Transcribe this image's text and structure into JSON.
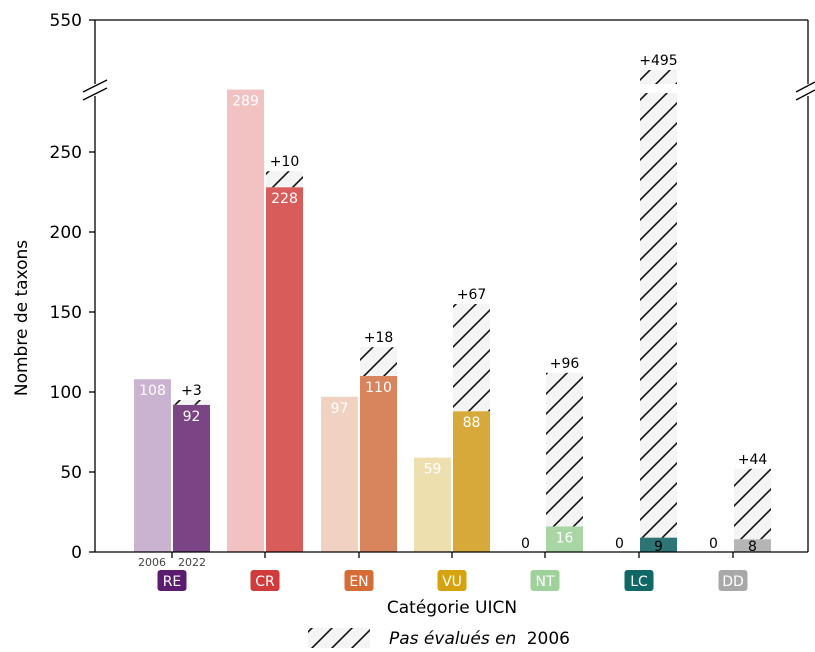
{
  "chart_data": {
    "type": "bar",
    "xlabel": "Catégorie UICN",
    "ylabel": "Nombre de taxons",
    "yticks": [
      "0",
      "50",
      "100",
      "150",
      "200",
      "250",
      "550"
    ],
    "y_axis": {
      "broken": true,
      "lower_range": [
        0,
        290
      ],
      "upper_tick": 550
    },
    "years": [
      "2006",
      "2022"
    ],
    "categories": [
      {
        "code": "RE",
        "color": "#5b1b6e",
        "color_2006": "#c9b3d0",
        "color_2022": "#7b4585",
        "v2006": 108,
        "label2006": "108",
        "v2022": 92,
        "label2022": "92",
        "added": 3,
        "added_label": "+3"
      },
      {
        "code": "CR",
        "color": "#d13b3b",
        "color_2006": "#f2c1c1",
        "color_2022": "#d85c5a",
        "v2006": 289,
        "label2006": "289",
        "v2022": 228,
        "label2022": "228",
        "added": 10,
        "added_label": "+10"
      },
      {
        "code": "EN",
        "color": "#d56b35",
        "color_2006": "#f1d1c0",
        "color_2022": "#d8845c",
        "v2006": 97,
        "label2006": "97",
        "v2022": 110,
        "label2022": "110",
        "added": 18,
        "added_label": "+18"
      },
      {
        "code": "VU",
        "color": "#d6a20e",
        "color_2006": "#eedfaf",
        "color_2022": "#d6a93a",
        "v2006": 59,
        "label2006": "59",
        "v2022": 88,
        "label2022": "88",
        "added": 67,
        "added_label": "+67"
      },
      {
        "code": "NT",
        "color": "#9fd19b",
        "color_2006": "#cfe8cc",
        "color_2022": "#a8d5a4",
        "v2006": 0,
        "label2006": "0",
        "v2022": 16,
        "label2022": "16",
        "added": 96,
        "added_label": "+96"
      },
      {
        "code": "LC",
        "color": "#0f6766",
        "color_2006": "#a7c8c8",
        "color_2022": "#2d7575",
        "v2006": 0,
        "label2006": "0",
        "v2022": 9,
        "label2022": "9",
        "added": 495,
        "added_label": "+495"
      },
      {
        "code": "DD",
        "color": "#a8a8a8",
        "color_2006": "#d6d6d6",
        "color_2022": "#b5b5b5",
        "v2006": 0,
        "label2006": "0",
        "v2022": 8,
        "label2022": "8",
        "added": 44,
        "added_label": "+44"
      }
    ],
    "legend": {
      "placement": "bottom-center",
      "label_prefix": "Pas évalués en",
      "label_year": "2006"
    }
  }
}
